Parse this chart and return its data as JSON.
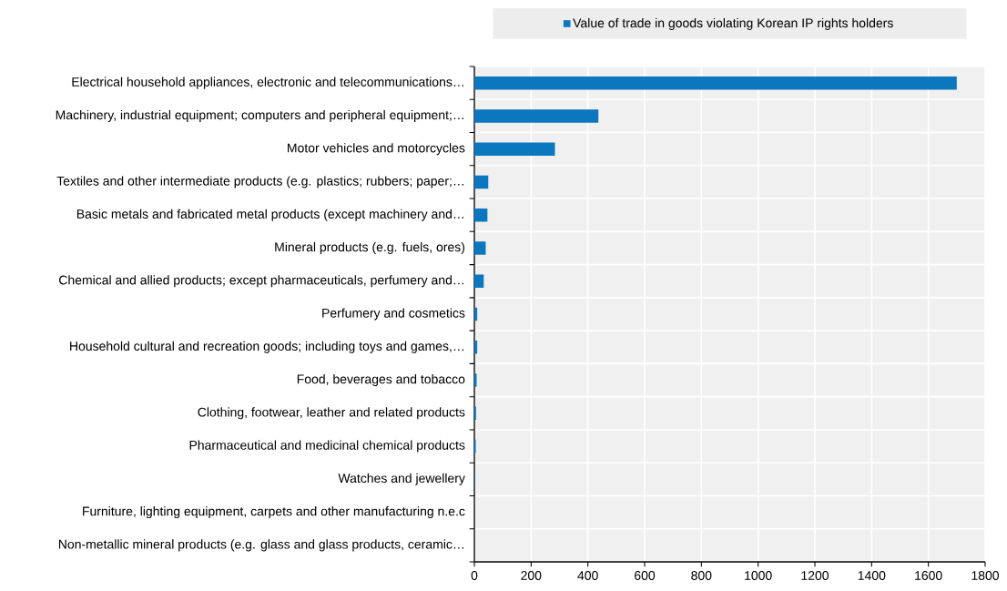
{
  "chart_data": {
    "type": "bar",
    "orientation": "horizontal",
    "categories": [
      "Electrical household appliances, electronic and telecommunications…",
      "Machinery, industrial equipment; computers and peripheral equipment;…",
      "Motor vehicles and motorcycles",
      "Textiles and other intermediate products (e.g. plastics; rubbers; paper;…",
      "Basic metals and fabricated metal products (except machinery and…",
      "Mineral products (e.g. fuels, ores)",
      "Chemical and allied products; except pharmaceuticals, perfumery and…",
      "Perfumery and cosmetics",
      "Household cultural and recreation goods;  including toys and games,…",
      "Food, beverages and tobacco",
      "Clothing, footwear, leather and related products",
      "Pharmaceutical and medicinal chemical products",
      "Watches and jewellery",
      "Furniture, lighting equipment, carpets and other manufacturing n.e.c",
      "Non-metallic mineral products (e.g. glass and glass products, ceramic…"
    ],
    "series": [
      {
        "name": "Value of trade in goods violating Korean IP rights holders",
        "color": "#0a77bf",
        "values": [
          1700,
          437,
          284,
          49,
          46,
          40,
          33,
          10,
          10,
          8,
          6,
          5,
          2,
          null,
          null
        ]
      }
    ],
    "xlim": [
      0,
      1800
    ],
    "xticks": [
      0,
      200,
      400,
      600,
      800,
      1000,
      1200,
      1400,
      1600,
      1800
    ],
    "grid": true,
    "legend": "top"
  }
}
